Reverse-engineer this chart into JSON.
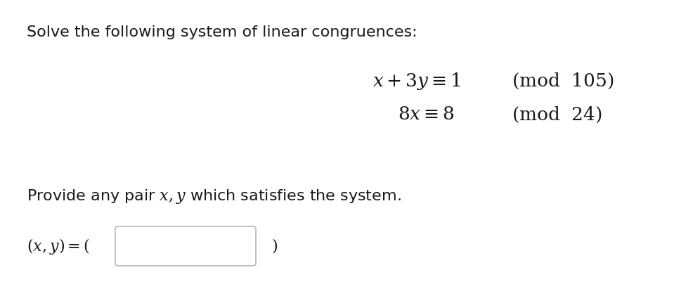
{
  "background_color": "#ffffff",
  "title_color": "#1a1a1a",
  "title_text": "Solve the following system of linear congruences:",
  "title_fontsize": 16,
  "eq_fontsize": 19,
  "provide_fontsize": 16,
  "answer_fontsize": 16,
  "box_edge_color": "#bbbbbb"
}
